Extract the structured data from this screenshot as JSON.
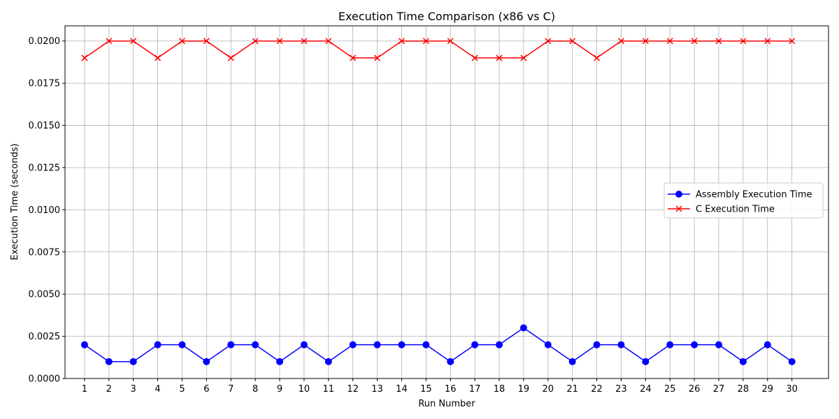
{
  "chart_data": {
    "type": "line",
    "title": "Execution Time Comparison (x86 vs C)",
    "xlabel": "Run Number",
    "ylabel": "Execution Time (seconds)",
    "x": [
      1,
      2,
      3,
      4,
      5,
      6,
      7,
      8,
      9,
      10,
      11,
      12,
      13,
      14,
      15,
      16,
      17,
      18,
      19,
      20,
      21,
      22,
      23,
      24,
      25,
      26,
      27,
      28,
      29,
      30
    ],
    "xlim": [
      0.2,
      31.5
    ],
    "ylim": [
      0.0,
      0.0209
    ],
    "yticks": [
      "0.0000",
      "0.0025",
      "0.0050",
      "0.0075",
      "0.0100",
      "0.0125",
      "0.0150",
      "0.0175",
      "0.0200"
    ],
    "grid": true,
    "legend_position": "center-right",
    "series": [
      {
        "name": "Assembly Execution Time",
        "color": "#0000ff",
        "marker": "circle",
        "values": [
          0.002,
          0.001,
          0.001,
          0.002,
          0.002,
          0.001,
          0.002,
          0.002,
          0.001,
          0.002,
          0.001,
          0.002,
          0.002,
          0.002,
          0.002,
          0.001,
          0.002,
          0.002,
          0.003,
          0.002,
          0.001,
          0.002,
          0.002,
          0.001,
          0.002,
          0.002,
          0.002,
          0.001,
          0.002,
          0.001
        ]
      },
      {
        "name": "C Execution Time",
        "color": "#ff0000",
        "marker": "x",
        "values": [
          0.019,
          0.02,
          0.02,
          0.019,
          0.02,
          0.02,
          0.019,
          0.02,
          0.02,
          0.02,
          0.02,
          0.019,
          0.019,
          0.02,
          0.02,
          0.02,
          0.019,
          0.019,
          0.019,
          0.02,
          0.02,
          0.019,
          0.02,
          0.02,
          0.02,
          0.02,
          0.02,
          0.02,
          0.02,
          0.02
        ]
      }
    ]
  }
}
